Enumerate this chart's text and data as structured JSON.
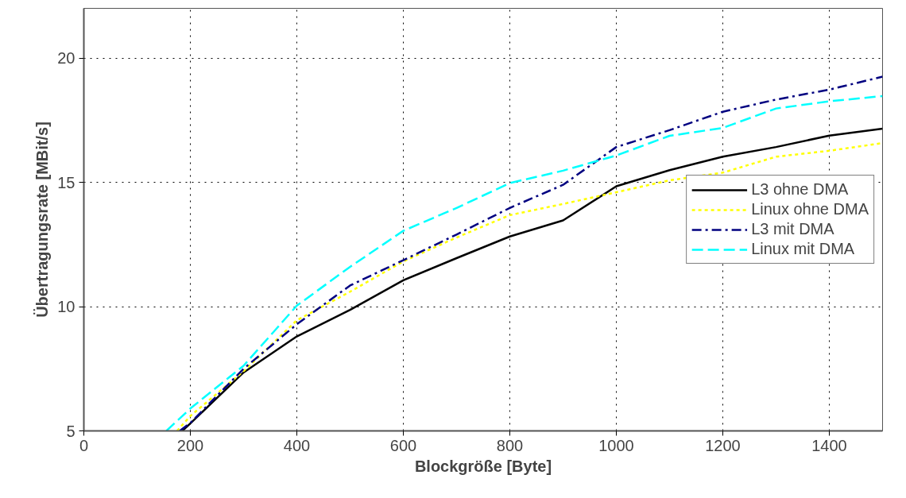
{
  "chart_data": {
    "type": "line",
    "xlabel": "Blockgröße [Byte]",
    "ylabel": "Übertragungsrate [MBit/s]",
    "xlim": [
      0,
      1500
    ],
    "ylim": [
      5,
      22
    ],
    "xticks": [
      0,
      200,
      400,
      600,
      800,
      1000,
      1200,
      1400
    ],
    "yticks": [
      5,
      10,
      15,
      20
    ],
    "grid": true,
    "legend": "right",
    "series": [
      {
        "name": "L3 ohne DMA",
        "color": "#000000",
        "line_style": "solid",
        "x": [
          185,
          200,
          300,
          400,
          500,
          600,
          700,
          800,
          900,
          1000,
          1100,
          1200,
          1300,
          1400,
          1500
        ],
        "values": [
          5,
          5.3,
          7.35,
          8.8,
          9.87,
          11.06,
          11.95,
          12.82,
          13.47,
          14.84,
          15.49,
          16.03,
          16.42,
          16.88,
          17.16
        ]
      },
      {
        "name": "Linux ohne DMA",
        "color": "#ffff00",
        "line_style": "dotted",
        "x": [
          175,
          200,
          300,
          400,
          500,
          600,
          700,
          800,
          900,
          1000,
          1100,
          1200,
          1300,
          1400,
          1500
        ],
        "values": [
          5,
          5.6,
          7.4,
          9.45,
          10.6,
          11.82,
          12.78,
          13.68,
          14.13,
          14.6,
          15.08,
          15.39,
          16.03,
          16.27,
          16.58
        ]
      },
      {
        "name": "L3 mit DMA",
        "color": "#000080",
        "line_style": "dashdot",
        "x": [
          180,
          200,
          300,
          400,
          500,
          600,
          700,
          800,
          900,
          1000,
          1100,
          1200,
          1300,
          1400,
          1500
        ],
        "values": [
          5,
          5.32,
          7.5,
          9.29,
          10.85,
          11.87,
          12.9,
          13.97,
          14.9,
          16.42,
          17.1,
          17.84,
          18.33,
          18.73,
          19.25
        ]
      },
      {
        "name": "Linux mit DMA",
        "color": "#00ffff",
        "line_style": "dashed",
        "x": [
          155,
          200,
          300,
          400,
          500,
          600,
          700,
          800,
          900,
          1000,
          1100,
          1200,
          1300,
          1400,
          1500
        ],
        "values": [
          5,
          5.9,
          7.62,
          10.04,
          11.6,
          13.05,
          13.97,
          14.97,
          15.47,
          16.08,
          16.87,
          17.19,
          17.97,
          18.26,
          18.47
        ]
      }
    ]
  }
}
